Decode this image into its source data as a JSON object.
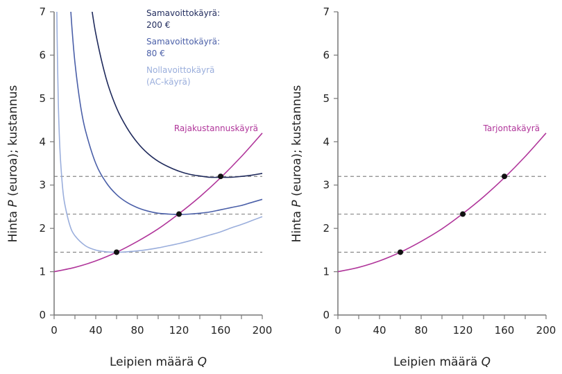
{
  "colors": {
    "profit200": "#1f2a5c",
    "profit80": "#4a5fa8",
    "zero_profit": "#9aaedc",
    "marginal_cost": "#b0359a",
    "axis": "#777777",
    "dash": "#888888",
    "point": "#111111"
  },
  "chart_data": [
    {
      "type": "line",
      "xlabel_text": "Leipien määrä ",
      "xlabel_var": "Q",
      "ylabel_pre": "Hinta ",
      "ylabel_var": "P",
      "ylabel_post": " (euroa); kustannus",
      "xlim": [
        0,
        200
      ],
      "ylim": [
        0,
        7
      ],
      "x_ticks": [
        "0",
        "40",
        "80",
        "120",
        "160",
        "200"
      ],
      "y_ticks": [
        "0",
        "1",
        "2",
        "3",
        "4",
        "5",
        "6",
        "7"
      ],
      "grid": false,
      "labels": {
        "profit200_l1": "Samavoittokäyrä:",
        "profit200_l2": "200 €",
        "profit80_l1": "Samavoittokäyrä:",
        "profit80_l2": "80 €",
        "zero_l1": "Nollavoittokäyrä",
        "zero_l2": "(AC-käyrä)",
        "mc": "Rajakustannuskäyrä"
      },
      "series": [
        {
          "name": "Samavoittokäyrä: 200 €",
          "color_key": "profit200",
          "x": [
            34,
            40,
            50,
            60,
            70,
            80,
            90,
            100,
            110,
            120,
            130,
            140,
            150,
            160,
            170,
            180,
            190,
            200
          ],
          "y": [
            7.43,
            6.5,
            5.46,
            4.78,
            4.32,
            3.98,
            3.73,
            3.55,
            3.42,
            3.32,
            3.25,
            3.21,
            3.18,
            3.18,
            3.18,
            3.2,
            3.23,
            3.27
          ]
        },
        {
          "name": "Samavoittokäyrä: 80 €",
          "color_key": "profit80",
          "x": [
            15,
            17,
            20,
            25,
            30,
            40,
            50,
            60,
            70,
            80,
            90,
            100,
            110,
            120,
            130,
            140,
            150,
            160,
            170,
            180,
            190,
            200
          ],
          "y": [
            7.41,
            6.67,
            5.83,
            4.89,
            4.27,
            3.5,
            3.06,
            2.78,
            2.6,
            2.48,
            2.4,
            2.35,
            2.33,
            2.32,
            2.33,
            2.35,
            2.38,
            2.43,
            2.48,
            2.53,
            2.6,
            2.67
          ]
        },
        {
          "name": "Nollavoittokäyrä (AC-käyrä)",
          "color_key": "zero_profit",
          "x": [
            2.5,
            3,
            4,
            5,
            6,
            8,
            10,
            15,
            20,
            30,
            40,
            50,
            60,
            70,
            80,
            90,
            100,
            110,
            120,
            130,
            140,
            150,
            160,
            170,
            180,
            190,
            200
          ],
          "y": [
            7.29,
            6.24,
            4.93,
            4.15,
            3.63,
            2.98,
            2.59,
            2.08,
            1.83,
            1.6,
            1.5,
            1.46,
            1.45,
            1.46,
            1.48,
            1.51,
            1.55,
            1.6,
            1.65,
            1.71,
            1.78,
            1.85,
            1.92,
            2.01,
            2.09,
            2.18,
            2.27
          ]
        },
        {
          "name": "Rajakustannuskäyrä",
          "color_key": "marginal_cost",
          "x": [
            0,
            20,
            40,
            60,
            80,
            100,
            120,
            140,
            160,
            180,
            200
          ],
          "y": [
            1,
            1.1,
            1.25,
            1.45,
            1.7,
            1.99,
            2.34,
            2.73,
            3.17,
            3.66,
            4.2
          ]
        }
      ],
      "points": [
        {
          "x": 60,
          "y": 1.45
        },
        {
          "x": 120,
          "y": 2.33
        },
        {
          "x": 160,
          "y": 3.2
        }
      ],
      "dashed_levels": [
        1.45,
        2.33,
        3.2
      ]
    },
    {
      "type": "line",
      "xlabel_text": "Leipien määrä ",
      "xlabel_var": "Q",
      "ylabel_pre": "Hinta ",
      "ylabel_var": "P",
      "ylabel_post": " (euroa); kustannus",
      "xlim": [
        0,
        200
      ],
      "ylim": [
        0,
        7
      ],
      "x_ticks": [
        "0",
        "40",
        "80",
        "120",
        "160",
        "200"
      ],
      "y_ticks": [
        "0",
        "1",
        "2",
        "3",
        "4",
        "5",
        "6",
        "7"
      ],
      "grid": false,
      "labels": {
        "supply": "Tarjontakäyrä"
      },
      "series": [
        {
          "name": "Tarjontakäyrä",
          "color_key": "marginal_cost",
          "x": [
            0,
            20,
            40,
            60,
            80,
            100,
            120,
            140,
            160,
            180,
            200
          ],
          "y": [
            1,
            1.1,
            1.25,
            1.45,
            1.7,
            1.99,
            2.34,
            2.73,
            3.17,
            3.66,
            4.2
          ]
        }
      ],
      "points": [
        {
          "x": 60,
          "y": 1.45
        },
        {
          "x": 120,
          "y": 2.33
        },
        {
          "x": 160,
          "y": 3.2
        }
      ],
      "dashed_levels": [
        1.45,
        2.33,
        3.2
      ]
    }
  ]
}
